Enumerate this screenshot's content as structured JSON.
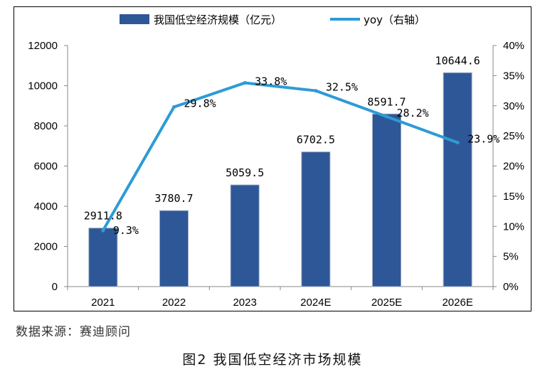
{
  "chart_data": {
    "type": "bar",
    "categories": [
      "2021",
      "2022",
      "2023",
      "2024E",
      "2025E",
      "2026E"
    ],
    "series": [
      {
        "name": "我国低空经济规模（亿元）",
        "type": "bar",
        "axis": "left",
        "values": [
          2911.8,
          3780.7,
          5059.5,
          6702.5,
          8591.7,
          10644.6
        ],
        "labels": [
          "2911.8",
          "3780.7",
          "5059.5",
          "6702.5",
          "8591.7",
          "10644.6"
        ],
        "color": "#2E5797"
      },
      {
        "name": "yoy（右轴）",
        "type": "line",
        "axis": "right",
        "values": [
          9.3,
          29.8,
          33.8,
          32.5,
          28.2,
          23.9
        ],
        "labels": [
          "9.3%",
          "29.8%",
          "33.8%",
          "32.5%",
          "28.2%",
          "23.9%"
        ],
        "color": "#2E9BD6"
      }
    ],
    "left_axis": {
      "min": 0,
      "max": 12000,
      "ticks": [
        "0",
        "2000",
        "4000",
        "6000",
        "8000",
        "10000",
        "12000"
      ]
    },
    "right_axis": {
      "min": 0,
      "max": 40,
      "ticks": [
        "0%",
        "5%",
        "10%",
        "15%",
        "20%",
        "25%",
        "30%",
        "35%",
        "40%"
      ]
    },
    "legend_position": "top",
    "grid": false
  },
  "source_text": "数据来源：赛迪顾问",
  "caption": "图2  我国低空经济市场规模"
}
